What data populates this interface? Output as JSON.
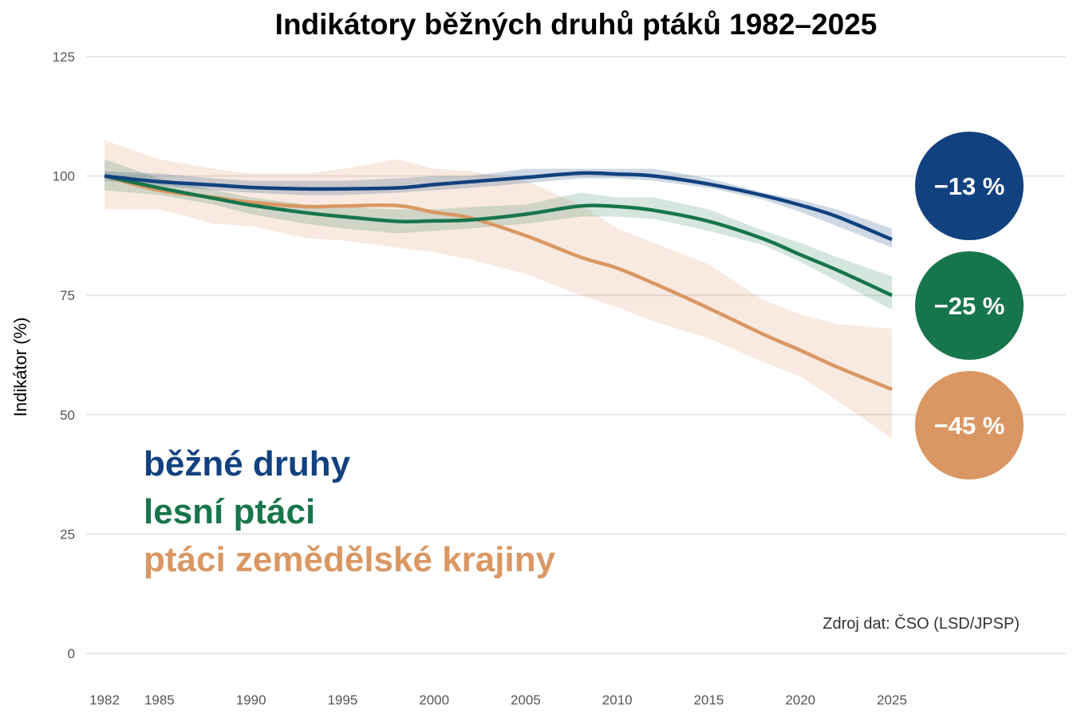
{
  "chart_data": {
    "type": "line",
    "title": "Indikátory běžných druhů ptáků 1982–2025",
    "ylabel": "Indikátor (%)",
    "xlabel": "",
    "ylim": [
      0,
      125
    ],
    "xlim": [
      1982,
      2025
    ],
    "yticks": [
      0,
      25,
      50,
      75,
      100,
      125
    ],
    "xticks": [
      1982,
      1985,
      1990,
      1995,
      2000,
      2005,
      2010,
      2015,
      2020,
      2025
    ],
    "grid": "horizontal",
    "legend_placement": "bottom-left",
    "source": "Zdroj dat: ČSO (LSD/JPSP)",
    "x": [
      1982,
      1985,
      1988,
      1990,
      1993,
      1995,
      1998,
      2000,
      2002,
      2005,
      2008,
      2010,
      2012,
      2015,
      2018,
      2020,
      2022,
      2025
    ],
    "series": [
      {
        "name": "běžné druhy",
        "color": "#11417f",
        "change_label": "−13 %",
        "values": [
          100,
          98.8,
          98.1,
          97.6,
          97.3,
          97.3,
          97.5,
          98.2,
          98.8,
          99.7,
          100.6,
          100.4,
          100,
          98.3,
          95.9,
          93.9,
          91.5,
          86.7
        ],
        "lower": [
          99,
          98,
          97,
          96.5,
          96,
          96,
          96.5,
          97,
          97.5,
          98.5,
          99.5,
          99.5,
          99,
          97.5,
          95,
          92.5,
          89.5,
          85
        ],
        "upper": [
          101,
          100.5,
          99.5,
          99,
          99,
          99,
          99.5,
          100,
          100,
          101.5,
          101.5,
          101.5,
          101.5,
          99.5,
          96.5,
          95,
          93,
          89
        ]
      },
      {
        "name": "lesní ptáci",
        "color": "#17754b",
        "change_label": "−25 %",
        "values": [
          100,
          97.5,
          95.3,
          93.9,
          92.3,
          91.5,
          90.5,
          90.6,
          90.8,
          92,
          93.7,
          93.6,
          92.8,
          90.5,
          86.8,
          83.5,
          80.3,
          75
        ],
        "lower": [
          97,
          96,
          94,
          92,
          90,
          89,
          88,
          88.5,
          89,
          90,
          91.5,
          91.5,
          91,
          88.5,
          85.5,
          82,
          78,
          72
        ],
        "upper": [
          103.5,
          99.5,
          97,
          95.5,
          94,
          93.5,
          93,
          93,
          93.5,
          94,
          96.5,
          95.5,
          95.5,
          93,
          88.5,
          86,
          83,
          79
        ]
      },
      {
        "name": "ptáci zemědělské krajiny",
        "color": "#da9763",
        "change_label": "−45 %",
        "values": [
          100,
          97,
          95.5,
          94.5,
          93.6,
          93.7,
          93.8,
          92.4,
          91.2,
          87.5,
          83,
          80.7,
          77.5,
          72.3,
          66.8,
          63.5,
          60,
          55.3
        ],
        "lower": [
          93,
          93,
          90,
          89.5,
          87,
          86.5,
          85,
          84,
          82.5,
          79.5,
          75,
          72.5,
          69.5,
          66,
          61,
          58,
          53,
          45
        ],
        "upper": [
          107.5,
          103.5,
          101.5,
          100.5,
          100.5,
          101.5,
          103.5,
          101.5,
          101,
          99,
          94,
          89,
          86,
          81.5,
          74,
          71,
          69,
          68
        ]
      }
    ]
  }
}
